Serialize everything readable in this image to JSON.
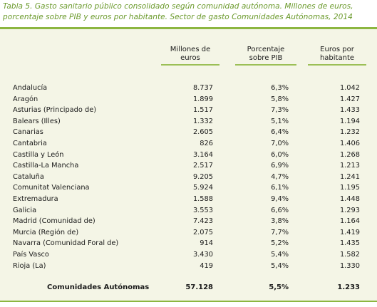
{
  "caption": {
    "line1": "Tabla 5. Gasto sanitario público consolidado según comunidad autónoma. Millones de euros,",
    "line2": "porcentaje sobre PIB y euros por habitante. Sector de gasto Comunidades Autónomas, 2014"
  },
  "columns": {
    "c1_line1": "Millones de",
    "c1_line2": "euros",
    "c2_line1": "Porcentaje",
    "c2_line2": "sobre PIB",
    "c3_line1": "Euros por",
    "c3_line2": "habitante"
  },
  "rows": [
    {
      "name": "Andalucía",
      "millones": "8.737",
      "pib": "6,3%",
      "hab": "1.042"
    },
    {
      "name": "Aragón",
      "millones": "1.899",
      "pib": "5,8%",
      "hab": "1.427"
    },
    {
      "name": "Asturias (Principado de)",
      "millones": "1.517",
      "pib": "7,3%",
      "hab": "1.433"
    },
    {
      "name": "Balears (Illes)",
      "millones": "1.332",
      "pib": "5,1%",
      "hab": "1.194"
    },
    {
      "name": "Canarias",
      "millones": "2.605",
      "pib": "6,4%",
      "hab": "1.232"
    },
    {
      "name": "Cantabria",
      "millones": "826",
      "pib": "7,0%",
      "hab": "1.406"
    },
    {
      "name": "Castilla y León",
      "millones": "3.164",
      "pib": "6,0%",
      "hab": "1.268"
    },
    {
      "name": "Castilla-La Mancha",
      "millones": "2.517",
      "pib": "6,9%",
      "hab": "1.213"
    },
    {
      "name": "Cataluña",
      "millones": "9.205",
      "pib": "4,7%",
      "hab": "1.241"
    },
    {
      "name": "Comunitat Valenciana",
      "millones": "5.924",
      "pib": "6,1%",
      "hab": "1.195"
    },
    {
      "name": "Extremadura",
      "millones": "1.588",
      "pib": "9,4%",
      "hab": "1.448"
    },
    {
      "name": "Galicia",
      "millones": "3.553",
      "pib": "6,6%",
      "hab": "1.293"
    },
    {
      "name": "Madrid (Comunidad de)",
      "millones": "7.423",
      "pib": "3,8%",
      "hab": "1.164"
    },
    {
      "name": "Murcia (Región de)",
      "millones": "2.075",
      "pib": "7,7%",
      "hab": "1.419"
    },
    {
      "name": "Navarra (Comunidad Foral de)",
      "millones": "914",
      "pib": "5,2%",
      "hab": "1.435"
    },
    {
      "name": "País Vasco",
      "millones": "3.430",
      "pib": "5,4%",
      "hab": "1.582"
    },
    {
      "name": "Rioja (La)",
      "millones": "419",
      "pib": "5,4%",
      "hab": "1.330"
    }
  ],
  "total": {
    "name": "Comunidades Autónomas",
    "millones": "57.128",
    "pib": "5,5%",
    "hab": "1.233"
  },
  "colors": {
    "accent": "#8cb640",
    "caption": "#6b9a2c",
    "panel": "#f4f5e6"
  }
}
